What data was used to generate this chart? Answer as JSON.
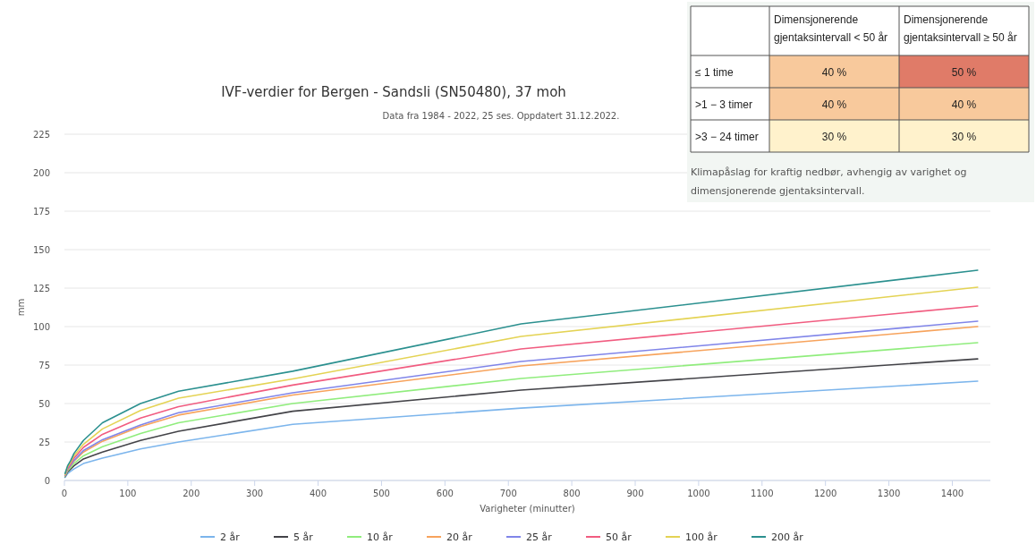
{
  "chart_data": [
    {
      "type": "line",
      "title": "IVF-verdier for Bergen - Sandsli (SN50480), 37 moh",
      "subtitle": "Data fra 1984 - 2022, 25 ses. Oppdatert 31.12.2022.",
      "xlabel": "Varigheter (minutter)",
      "ylabel": "mm",
      "x": [
        1,
        5,
        10,
        15,
        30,
        60,
        120,
        180,
        360,
        720,
        1440
      ],
      "xlim": [
        0,
        1460
      ],
      "xticks": [
        0,
        100,
        200,
        300,
        400,
        500,
        600,
        700,
        800,
        900,
        1000,
        1100,
        1200,
        1300,
        1400
      ],
      "ylim": [
        0,
        225
      ],
      "yticks": [
        0,
        25,
        50,
        75,
        100,
        125,
        150,
        175,
        200,
        225
      ],
      "grid": "y",
      "legend": "bottom",
      "marker": "none",
      "line_style": "solid",
      "series": [
        {
          "name": "2 år",
          "color": "#7cb5ec",
          "values": [
            2,
            4.5,
            6,
            7.5,
            11,
            14.5,
            20.5,
            25,
            36.5,
            47,
            64.5
          ]
        },
        {
          "name": "5 år",
          "color": "#434348",
          "values": [
            2.5,
            5.5,
            7.5,
            9.5,
            14,
            18.5,
            26,
            32,
            45,
            58.7,
            79
          ]
        },
        {
          "name": "10 år",
          "color": "#90ed7d",
          "values": [
            2.8,
            6.2,
            8.5,
            11,
            16,
            22,
            30.5,
            37.5,
            50,
            66.3,
            89.5
          ]
        },
        {
          "name": "20 år",
          "color": "#f7a35c",
          "values": [
            3.2,
            7,
            9.5,
            12.5,
            18.5,
            25.5,
            35,
            42.5,
            55.5,
            74.4,
            100
          ]
        },
        {
          "name": "25 år",
          "color": "#8085e9",
          "values": [
            3.3,
            7.2,
            10,
            13,
            19.5,
            26.5,
            36,
            44,
            57,
            77.3,
            103.5
          ]
        },
        {
          "name": "50 år",
          "color": "#f15c80",
          "values": [
            3.7,
            8,
            11,
            14.5,
            21.5,
            30,
            40.5,
            48,
            62,
            85.5,
            113.4
          ]
        },
        {
          "name": "100 år",
          "color": "#e4d354",
          "values": [
            4,
            8.8,
            12,
            16,
            23.5,
            33.5,
            45.5,
            53.5,
            66,
            93.6,
            125.6
          ]
        },
        {
          "name": "200 år",
          "color": "#2b908f",
          "values": [
            4.5,
            9.5,
            13,
            17.5,
            26,
            37.5,
            50,
            58,
            71,
            101.7,
            136.6
          ]
        }
      ]
    },
    {
      "type": "heatmap",
      "categories": [
        "Dimensjonerende gjentaksintervall < 50 år",
        "Dimensjonerende gjentaksintervall ≥ 50 år"
      ],
      "y_categories": [
        "≤ 1 time",
        ">1 − 3 timer",
        ">3 − 24 timer"
      ],
      "cells": [
        [
          40,
          50
        ],
        [
          40,
          40
        ],
        [
          30,
          30
        ]
      ],
      "cell_labels": [
        [
          "40 %",
          "50 %"
        ],
        [
          "40 %",
          "40 %"
        ],
        [
          "30 %",
          "30 %"
        ]
      ],
      "colors": [
        "#fff2cc",
        "#f8c99c",
        "#e07b68"
      ],
      "annotations": [
        "Klimapåslag for kraftig nedbør, avhengig av varighet og dimensjonerende gjentaksintervall."
      ]
    }
  ]
}
